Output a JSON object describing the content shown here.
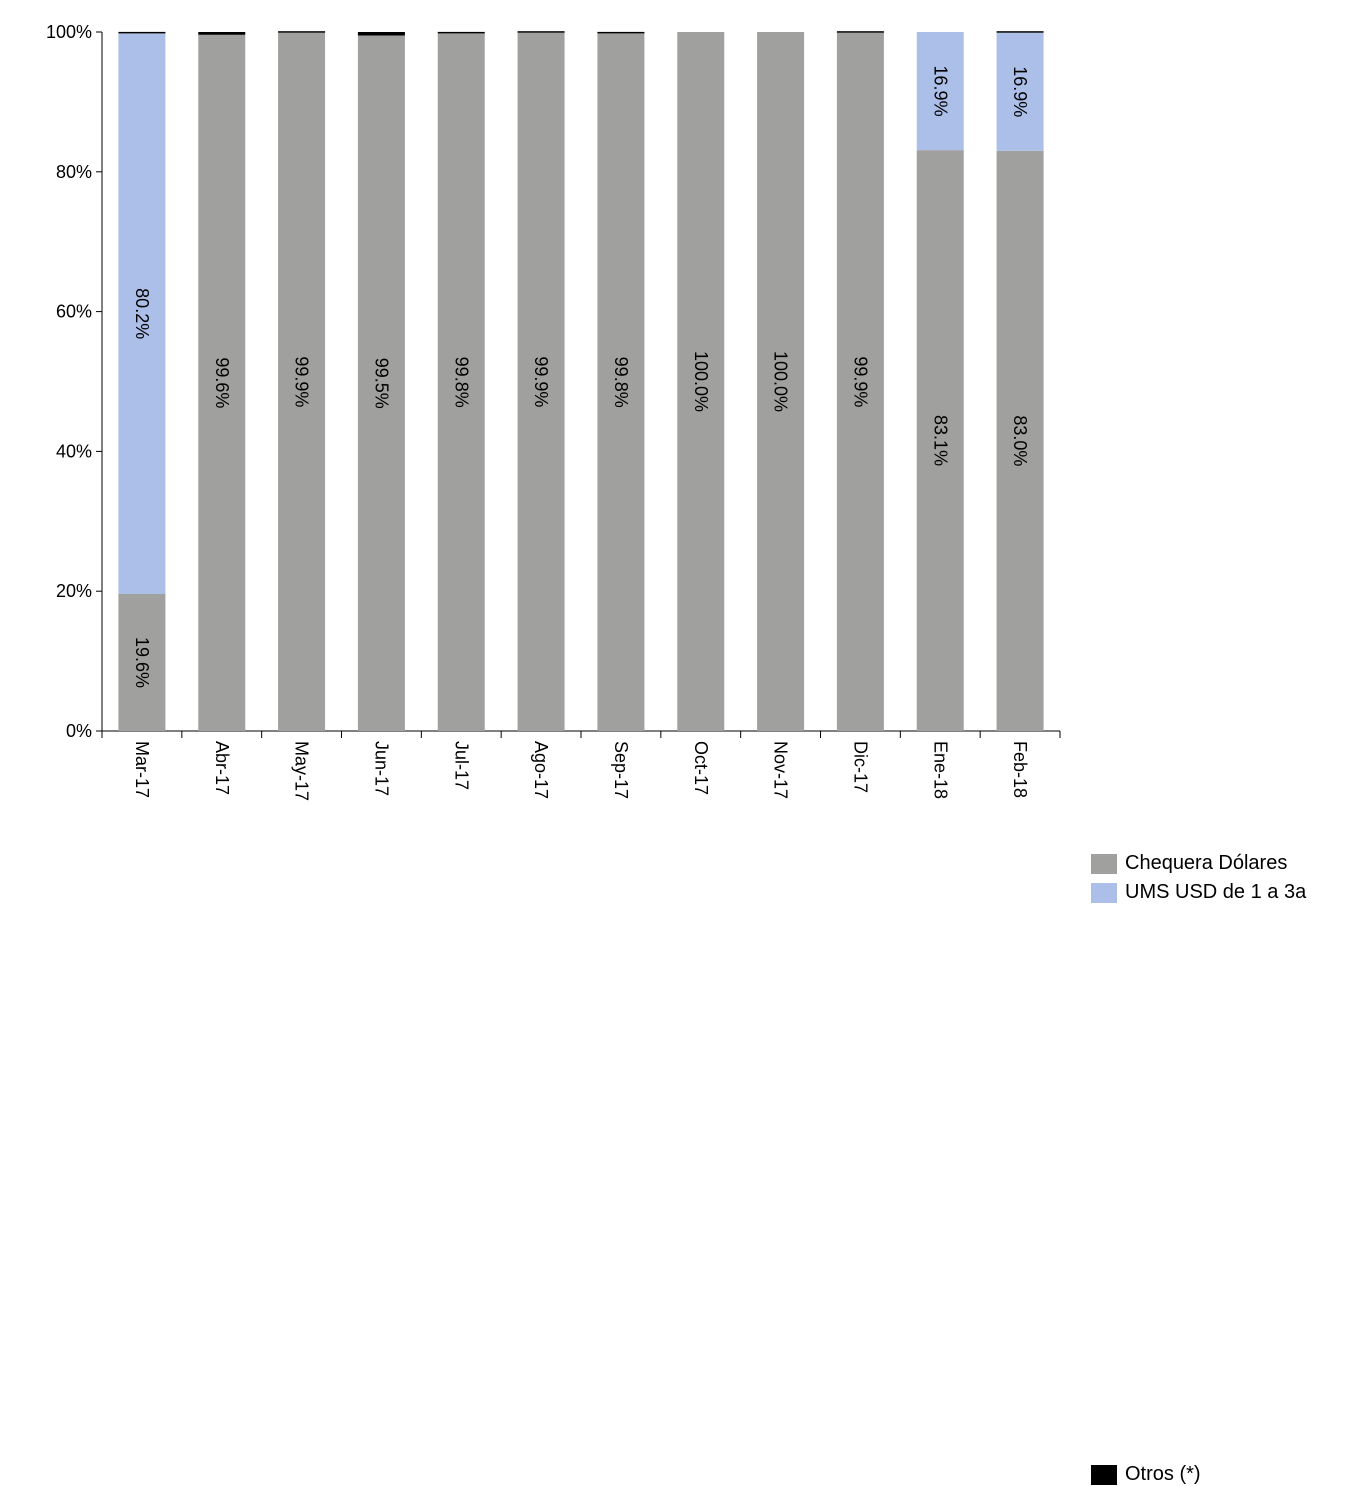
{
  "chart_data": {
    "type": "bar",
    "stacked": true,
    "percent": true,
    "categories": [
      "Mar-17",
      "Abr-17",
      "May-17",
      "Jun-17",
      "Jul-17",
      "Ago-17",
      "Sep-17",
      "Oct-17",
      "Nov-17",
      "Dic-17",
      "Ene-18",
      "Feb-18"
    ],
    "series": [
      {
        "name": "Chequera Dólares",
        "color": "#a0a09f",
        "values": [
          19.6,
          99.6,
          99.9,
          99.5,
          99.8,
          99.9,
          99.8,
          100.0,
          100.0,
          99.9,
          83.1,
          83.0
        ],
        "labels": [
          "19.6%",
          "99.6%",
          "99.9%",
          "99.5%",
          "99.8%",
          "99.9%",
          "99.8%",
          "100.0%",
          "100.0%",
          "99.9%",
          "83.1%",
          "83.0%"
        ]
      },
      {
        "name": "UMS USD de 1 a 3a",
        "color": "#abbfe8",
        "values": [
          80.2,
          0,
          0,
          0,
          0,
          0,
          0,
          0,
          0,
          0,
          16.9,
          16.9
        ],
        "labels": [
          "80.2%",
          "",
          "",
          "",
          "",
          "",
          "",
          "",
          "",
          "",
          "16.9%",
          "16.9%"
        ]
      },
      {
        "name": "Otros (*)",
        "color": "#000000",
        "values": [
          0.2,
          0.4,
          0.1,
          0.5,
          0.2,
          0.1,
          0.2,
          0,
          0,
          0.1,
          0,
          0.1
        ],
        "labels": [
          "",
          "",
          "",
          "",
          "",
          "",
          "",
          "",
          "",
          "",
          "",
          ""
        ]
      }
    ],
    "yticks": [
      "0%",
      "20%",
      "40%",
      "60%",
      "80%",
      "100%"
    ],
    "ylim": [
      0,
      100
    ],
    "xlabel": "",
    "ylabel": "",
    "grid": false,
    "legend_position": "right"
  }
}
